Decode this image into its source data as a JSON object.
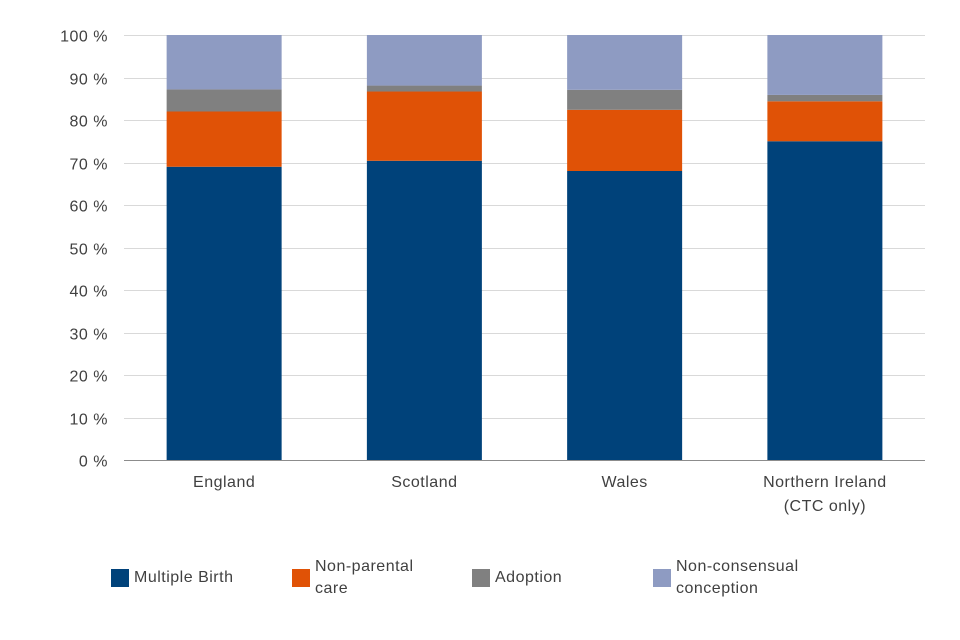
{
  "chart_data": {
    "type": "bar",
    "stacked": true,
    "title": "",
    "xlabel": "",
    "ylabel": "",
    "ylim": [
      0,
      100
    ],
    "yticks": [
      "0 %",
      "10 %",
      "20 %",
      "30 %",
      "40 %",
      "50 %",
      "60 %",
      "70 %",
      "80 %",
      "90 %",
      "100 %"
    ],
    "categories": [
      [
        "England"
      ],
      [
        "Scotland"
      ],
      [
        "Wales"
      ],
      [
        "Northern Ireland",
        "(CTC only)"
      ]
    ],
    "series": [
      {
        "name": "Multiple Birth",
        "legend_lines": [
          "Multiple Birth"
        ],
        "color": "#00427a",
        "values": [
          69,
          70.4,
          68,
          75
        ]
      },
      {
        "name": "Non-parental care",
        "legend_lines": [
          "Non-parental",
          "care"
        ],
        "color": "#e05206",
        "values": [
          13,
          16.3,
          14.4,
          9.4
        ]
      },
      {
        "name": "Adoption",
        "legend_lines": [
          "Adoption"
        ],
        "color": "#808080",
        "values": [
          5.2,
          1.4,
          4.7,
          1.5
        ]
      },
      {
        "name": "Non-consensual conception",
        "legend_lines": [
          "Non-consensual",
          "conception"
        ],
        "color": "#8e9bc2",
        "values": [
          12.8,
          11.9,
          12.9,
          14.1
        ]
      }
    ],
    "legend_position": "bottom",
    "grid": true
  }
}
